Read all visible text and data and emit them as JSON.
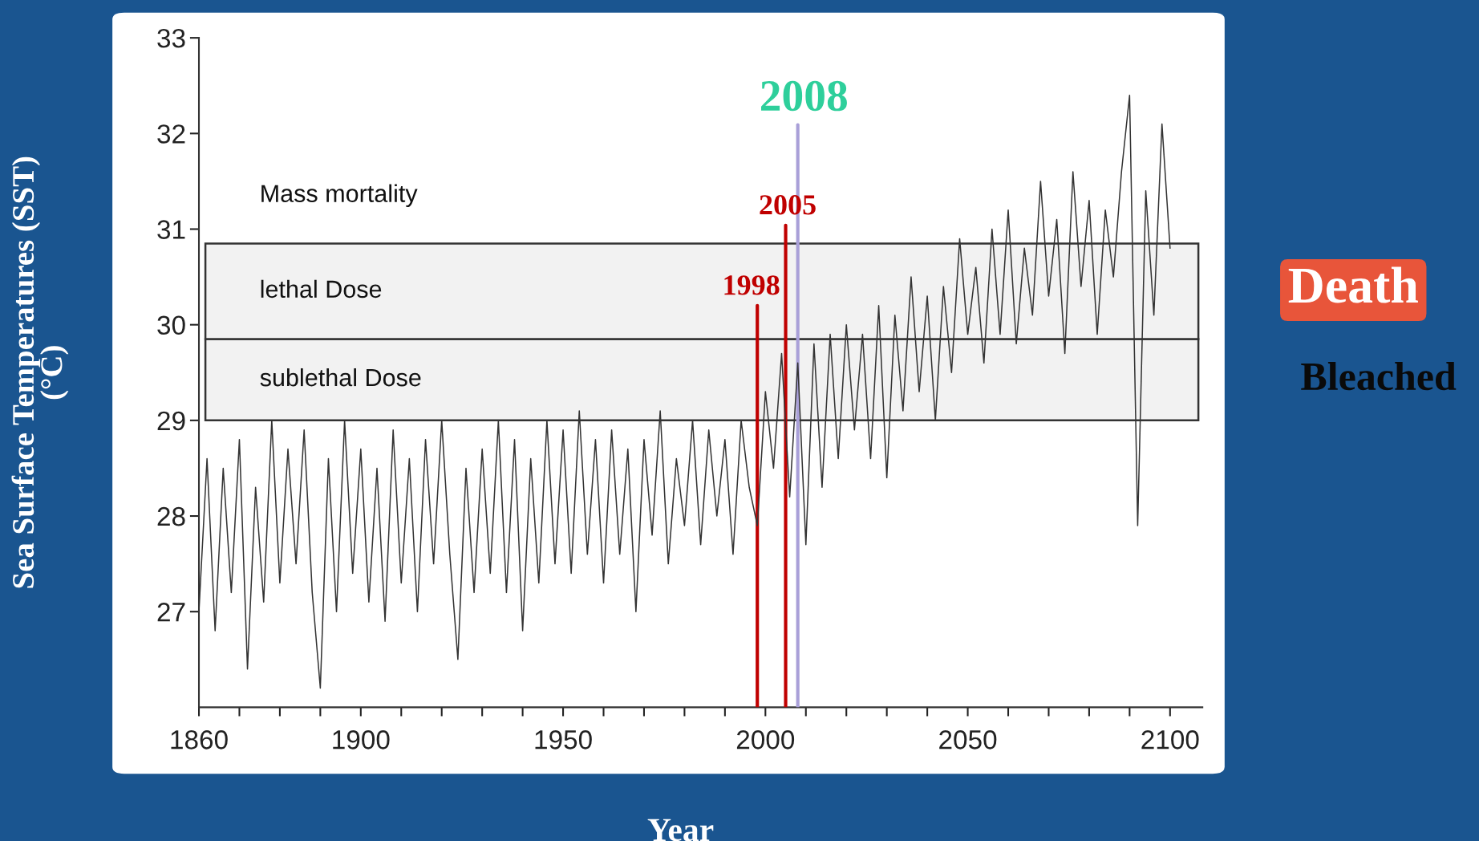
{
  "chart_data": {
    "type": "line",
    "xlabel": "Year",
    "ylabel": "Sea Surface Temperatures (SST)\n(°C)",
    "x": [
      1860,
      1862,
      1864,
      1866,
      1868,
      1870,
      1872,
      1874,
      1876,
      1878,
      1880,
      1882,
      1884,
      1886,
      1888,
      1890,
      1892,
      1894,
      1896,
      1898,
      1900,
      1902,
      1904,
      1906,
      1908,
      1910,
      1912,
      1914,
      1916,
      1918,
      1920,
      1922,
      1924,
      1926,
      1928,
      1930,
      1932,
      1934,
      1936,
      1938,
      1940,
      1942,
      1944,
      1946,
      1948,
      1950,
      1952,
      1954,
      1956,
      1958,
      1960,
      1962,
      1964,
      1966,
      1968,
      1970,
      1972,
      1974,
      1976,
      1978,
      1980,
      1982,
      1984,
      1986,
      1988,
      1990,
      1992,
      1994,
      1996,
      1998,
      2000,
      2002,
      2004,
      2006,
      2008,
      2010,
      2012,
      2014,
      2016,
      2018,
      2020,
      2022,
      2024,
      2026,
      2028,
      2030,
      2032,
      2034,
      2036,
      2038,
      2040,
      2042,
      2044,
      2046,
      2048,
      2050,
      2052,
      2054,
      2056,
      2058,
      2060,
      2062,
      2064,
      2066,
      2068,
      2070,
      2072,
      2074,
      2076,
      2078,
      2080,
      2082,
      2084,
      2086,
      2088,
      2090,
      2092,
      2094,
      2096,
      2098,
      2100
    ],
    "series": [
      {
        "color": "#333333",
        "values": [
          27.0,
          28.6,
          26.8,
          28.5,
          27.2,
          28.8,
          26.4,
          28.3,
          27.1,
          29.0,
          27.3,
          28.7,
          27.5,
          28.9,
          27.2,
          26.2,
          28.6,
          27.0,
          29.0,
          27.4,
          28.7,
          27.1,
          28.5,
          26.9,
          28.9,
          27.3,
          28.6,
          27.0,
          28.8,
          27.5,
          29.0,
          27.6,
          26.5,
          28.5,
          27.2,
          28.7,
          27.4,
          29.0,
          27.2,
          28.8,
          26.8,
          28.6,
          27.3,
          29.0,
          27.5,
          28.9,
          27.4,
          29.1,
          27.6,
          28.8,
          27.3,
          28.9,
          27.6,
          28.7,
          27.0,
          28.8,
          27.8,
          29.1,
          27.5,
          28.6,
          27.9,
          29.0,
          27.7,
          28.9,
          28.0,
          28.8,
          27.6,
          29.0,
          28.3,
          27.9,
          29.3,
          28.5,
          29.7,
          28.2,
          29.6,
          27.7,
          29.8,
          28.3,
          29.9,
          28.6,
          30.0,
          28.9,
          29.9,
          28.6,
          30.2,
          28.4,
          30.1,
          29.1,
          30.5,
          29.3,
          30.3,
          29.0,
          30.4,
          29.5,
          30.9,
          29.9,
          30.6,
          29.6,
          31.0,
          29.9,
          31.2,
          29.8,
          30.8,
          30.1,
          31.5,
          30.3,
          31.1,
          29.7,
          31.6,
          30.4,
          31.3,
          29.9,
          31.2,
          30.5,
          31.6,
          32.4,
          27.9,
          31.4,
          30.1,
          32.1,
          30.8
        ]
      }
    ],
    "xlim": [
      1860,
      2108
    ],
    "xticks": [
      1860,
      {
        "value": 1870,
        "label": null
      },
      {
        "value": 1880,
        "label": null
      },
      {
        "value": 1890,
        "label": null
      },
      1900,
      {
        "value": 1910,
        "label": null
      },
      {
        "value": 1920,
        "label": null
      },
      {
        "value": 1930,
        "label": null
      },
      {
        "value": 1940,
        "label": null
      },
      1950,
      {
        "value": 1960,
        "label": null
      },
      {
        "value": 1970,
        "label": null
      },
      {
        "value": 1980,
        "label": null
      },
      {
        "value": 1990,
        "label": null
      },
      2000,
      {
        "value": 2010,
        "label": null
      },
      {
        "value": 2020,
        "label": null
      },
      {
        "value": 2030,
        "label": null
      },
      {
        "value": 2040,
        "label": null
      },
      2050,
      {
        "value": 2060,
        "label": null
      },
      {
        "value": 2070,
        "label": null
      },
      {
        "value": 2080,
        "label": null
      },
      {
        "value": 2090,
        "label": null
      },
      2100
    ],
    "ylim": [
      26,
      33
    ],
    "yticks": [
      27,
      28,
      29,
      30,
      31,
      32,
      33
    ],
    "grid": false,
    "legend": false,
    "bands": [
      {
        "axis": "y",
        "from": 29.0,
        "to": 29.85,
        "label": "sublethal Dose",
        "color": "#333333"
      },
      {
        "axis": "y",
        "from": 29.85,
        "to": 30.85,
        "label": "lethal Dose",
        "color": "#333333"
      }
    ],
    "ref_lines": [
      {
        "axis": "x",
        "value": 1998,
        "label": "1998",
        "color": "#c00000"
      },
      {
        "axis": "x",
        "value": 2005,
        "label": "2005",
        "color": "#c00000"
      },
      {
        "axis": "x",
        "value": 2008,
        "label": "2008",
        "color": "#a9a0d8"
      }
    ],
    "annotations": [
      "Mass mortality",
      "Death",
      "Bleached"
    ]
  }
}
